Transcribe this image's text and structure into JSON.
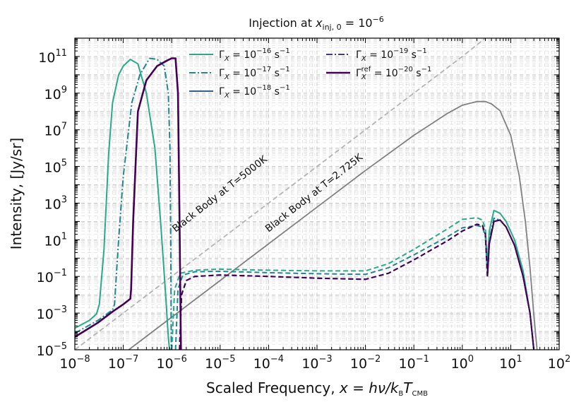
{
  "chart_data": {
    "type": "line",
    "title_prefix": "Injection at ",
    "title_math": "x",
    "title_sub": "inj, 0",
    "title_eq": " = 10",
    "title_exp": "−6",
    "xlabel_prefix": "Scaled Frequency, ",
    "xlabel_math": "x = hν/k",
    "xlabel_sub_b": "B",
    "xlabel_T": "T",
    "xlabel_sub_cmb": "CMB",
    "ylabel": "Intensity, [Jy/sr]",
    "x_scale": "log",
    "y_scale": "log",
    "xlim": [
      1e-08,
      100
    ],
    "ylim": [
      1e-05,
      1000000000000.0
    ],
    "x_ticks": [
      {
        "base": "10",
        "exp": "−8"
      },
      {
        "base": "10",
        "exp": "−7"
      },
      {
        "base": "10",
        "exp": "−6"
      },
      {
        "base": "10",
        "exp": "−5"
      },
      {
        "base": "10",
        "exp": "−4"
      },
      {
        "base": "10",
        "exp": "−3"
      },
      {
        "base": "10",
        "exp": "−2"
      },
      {
        "base": "10",
        "exp": "−1"
      },
      {
        "base": "10",
        "exp": "0"
      },
      {
        "base": "10",
        "exp": "1"
      },
      {
        "base": "10",
        "exp": "2"
      }
    ],
    "y_ticks": [
      {
        "base": "10",
        "exp": "−5"
      },
      {
        "base": "10",
        "exp": "−3"
      },
      {
        "base": "10",
        "exp": "−1"
      },
      {
        "base": "10",
        "exp": "1"
      },
      {
        "base": "10",
        "exp": "3"
      },
      {
        "base": "10",
        "exp": "5"
      },
      {
        "base": "10",
        "exp": "7"
      },
      {
        "base": "10",
        "exp": "9"
      },
      {
        "base": "10",
        "exp": "11"
      }
    ],
    "grid": true,
    "legend_position": "top",
    "series": [
      {
        "name": "Γ_X = 10^−16 s^−1",
        "legend_math": "Γ",
        "legend_sub": "X",
        "legend_sup": "",
        "legend_eq": " = 10",
        "legend_exp": "−16",
        "legend_unit": " s",
        "legend_unit_exp": "−1",
        "color": "#2aa98a",
        "style": "solid",
        "x": [
          1e-08,
          2e-08,
          2.8e-08,
          3.2e-08,
          4e-08,
          5e-08,
          6e-08,
          8e-08,
          1e-07,
          1.4e-07,
          2e-07,
          3e-07,
          4.5e-07,
          6e-07,
          7.5e-07,
          8.5e-07,
          9e-07
        ],
        "y": [
          0.00015,
          0.0004,
          0.0009,
          0.003,
          3,
          500000.0,
          300000000.0,
          10000000000.0,
          30000000000.0,
          70000000000.0,
          40000000000.0,
          1000000000.0,
          1000000.0,
          50,
          0.01,
          5e-05,
          1e-05
        ]
      },
      {
        "name": "Γ_X = 10^−17 s^−1",
        "legend_math": "Γ",
        "legend_sub": "X",
        "legend_sup": "",
        "legend_eq": " = 10",
        "legend_exp": "−17",
        "legend_unit": " s",
        "legend_unit_exp": "−1",
        "color": "#22868a",
        "style": "dashdot",
        "x": [
          1e-08,
          3e-08,
          6e-08,
          6.6e-08,
          8e-08,
          1e-07,
          1.5e-07,
          2.2e-07,
          3.5e-07,
          5e-07,
          7e-07,
          8.5e-07,
          9.2e-07,
          9.6e-07,
          9.8e-07
        ],
        "y": [
          8e-05,
          0.0004,
          0.0015,
          0.003,
          10,
          30000.0,
          300000000.0,
          10000000000.0,
          80000000000.0,
          70000000000.0,
          30000000000.0,
          1000000000.0,
          1000000.0,
          1,
          1e-05
        ]
      },
      {
        "name": "Γ_X = 10^−18 s^−1",
        "legend_math": "Γ",
        "legend_sub": "X",
        "legend_sup": "",
        "legend_eq": " = 10",
        "legend_exp": "−18",
        "legend_unit": " s",
        "legend_unit_exp": "−1",
        "color": "#355f8d",
        "style": "solid",
        "x": [
          1e-08,
          3e-08,
          6e-08,
          1e-07,
          1.4e-07,
          1.45e-07,
          1.6e-07,
          2e-07,
          3e-07,
          5e-07,
          8e-07,
          1e-06,
          1.2e-06,
          1.35e-06,
          1.45e-06,
          1.55e-06
        ],
        "y": [
          5e-05,
          0.0003,
          0.0012,
          0.003,
          0.006,
          0.02,
          100,
          100000000.0,
          5000000000.0,
          30000000000.0,
          60000000000.0,
          80000000000.0,
          80000000000.0,
          1000000000.0,
          100,
          1e-05
        ]
      },
      {
        "name": "Γ_X = 10^−19 s^−1",
        "legend_math": "Γ",
        "legend_sub": "X",
        "legend_sup": "",
        "legend_eq": " = 10",
        "legend_exp": "−19",
        "legend_unit": " s",
        "legend_unit_exp": "−1",
        "color": "#443a83",
        "style": "dashdot",
        "x": [
          1e-08,
          3e-08,
          6e-08,
          1e-07,
          1.4e-07,
          1.45e-07,
          1.6e-07,
          2e-07,
          3e-07,
          5e-07,
          8e-07,
          1e-06,
          1.2e-06,
          1.35e-06,
          1.45e-06,
          1.55e-06
        ],
        "y": [
          5e-05,
          0.0003,
          0.0012,
          0.003,
          0.006,
          0.02,
          100,
          100000000.0,
          5000000000.0,
          30000000000.0,
          60000000000.0,
          80000000000.0,
          80000000000.0,
          1000000000.0,
          100,
          1e-05
        ]
      },
      {
        "name": "Γ_X^ref = 10^−20 s^−1",
        "legend_math": "Γ",
        "legend_sub": "X",
        "legend_sup": "ref",
        "legend_eq": " = 10",
        "legend_exp": "−20",
        "legend_unit": " s",
        "legend_unit_exp": "−1",
        "color": "#440154",
        "style": "solid",
        "x": [
          1e-08,
          3e-08,
          6e-08,
          1e-07,
          1.4e-07,
          1.45e-07,
          1.6e-07,
          2e-07,
          3e-07,
          5e-07,
          8e-07,
          1e-06,
          1.2e-06,
          1.35e-06,
          1.45e-06,
          1.55e-06
        ],
        "y": [
          5e-05,
          0.0003,
          0.0012,
          0.003,
          0.006,
          0.02,
          100,
          100000000.0,
          5000000000.0,
          30000000000.0,
          60000000000.0,
          80000000000.0,
          80000000000.0,
          1000000000.0,
          100,
          1e-05
        ]
      }
    ],
    "tail_series": [
      {
        "name": "Γ_X = 10^−16 s^−1 (x > 10^−6)",
        "color": "#2aa98a",
        "x": [
          1e-06,
          1.15e-06,
          1.5e-06,
          3e-06,
          1e-05,
          0.0001,
          0.001,
          0.01,
          0.03,
          0.1,
          0.5,
          1,
          2,
          2.6,
          3.0,
          3.3,
          3.6,
          4.5,
          6,
          8,
          12,
          18,
          25,
          30
        ],
        "y": [
          1e-05,
          0.02,
          0.15,
          0.22,
          0.25,
          0.22,
          0.2,
          0.2,
          0.5,
          3,
          40,
          130,
          160,
          120,
          40,
          0.5,
          30,
          400,
          280,
          100,
          10,
          0.2,
          0.001,
          1e-05
        ],
        "style": "dashed",
        "tail_style_after": "solid",
        "split_x": 3.5
      },
      {
        "name": "Γ_X = 10^−17 s^−1 (x > 10^−6)",
        "color": "#22868a",
        "x": [
          1.2e-06,
          1.35e-06,
          1.7e-06,
          3e-06,
          1e-05,
          0.0001,
          0.001,
          0.01,
          0.03,
          0.1,
          0.5,
          1,
          2,
          2.6,
          3.0,
          3.3,
          3.6,
          4.5,
          6,
          8,
          12,
          18,
          25,
          30
        ],
        "y": [
          1e-05,
          0.02,
          0.12,
          0.18,
          0.19,
          0.16,
          0.14,
          0.13,
          0.3,
          1.5,
          15,
          45,
          60,
          50,
          15,
          0.2,
          10,
          150,
          120,
          50,
          5,
          0.1,
          0.001,
          1e-05
        ],
        "style": "dashed",
        "tail_style_after": "dashdot",
        "split_x": 3.5
      },
      {
        "name": "Γ_X = 10^−18 s^−1 (x > 10^−6)",
        "color": "#355f8d",
        "x": [
          1.45e-06,
          1.6e-06,
          2e-06,
          3e-06,
          1e-05,
          0.0001,
          0.001,
          0.01,
          0.03,
          0.1,
          0.5,
          1,
          2,
          2.6,
          3.0,
          3.3,
          3.6,
          4.5,
          6,
          8,
          12,
          18,
          25,
          30
        ],
        "y": [
          1e-05,
          0.01,
          0.06,
          0.1,
          0.12,
          0.1,
          0.08,
          0.07,
          0.15,
          0.8,
          9,
          30,
          70,
          60,
          20,
          0.1,
          6,
          100,
          120,
          50,
          5,
          0.1,
          0.001,
          1e-05
        ],
        "style": "dashed",
        "tail_style_after": "solid",
        "split_x": 3.5
      },
      {
        "name": "Γ_X = 10^−19 s^−1 (x > 10^−6)",
        "color": "#443a83",
        "x": [
          1.45e-06,
          1.6e-06,
          2e-06,
          3e-06,
          1e-05,
          0.0001,
          0.001,
          0.01,
          0.03,
          0.1,
          0.5,
          1,
          2,
          2.6,
          3.0,
          3.3,
          3.6,
          4.5,
          6,
          8,
          12,
          18,
          25,
          30
        ],
        "y": [
          1e-05,
          0.01,
          0.06,
          0.1,
          0.12,
          0.1,
          0.08,
          0.07,
          0.15,
          0.8,
          9,
          30,
          70,
          60,
          20,
          0.1,
          6,
          100,
          120,
          50,
          5,
          0.1,
          0.001,
          1e-05
        ],
        "style": "dashed",
        "tail_style_after": "dashdot",
        "split_x": 3.5
      },
      {
        "name": "Γ_X^ref = 10^−20 s^−1 (x > 10^−6)",
        "color": "#440154",
        "x": [
          1.45e-06,
          1.6e-06,
          2e-06,
          3e-06,
          1e-05,
          0.0001,
          0.001,
          0.01,
          0.03,
          0.1,
          0.5,
          1,
          2,
          2.6,
          3.0,
          3.3,
          3.6,
          4.5,
          6,
          8,
          12,
          18,
          25,
          30
        ],
        "y": [
          1e-05,
          0.01,
          0.06,
          0.1,
          0.12,
          0.1,
          0.08,
          0.07,
          0.15,
          0.8,
          9,
          30,
          70,
          60,
          20,
          0.1,
          6,
          100,
          120,
          50,
          5,
          0.1,
          0.001,
          1e-05
        ],
        "style": "dashed",
        "tail_style_after": "solid",
        "split_x": 3.5
      }
    ],
    "blackbody_curves": [
      {
        "name": "Black Body at T=2.725K",
        "color": "#808080",
        "style": "solid",
        "x": [
          1.3e-07,
          1e-06,
          1e-05,
          0.0001,
          0.001,
          0.01,
          0.1,
          0.5,
          1,
          2,
          3,
          4,
          6,
          10,
          15,
          20,
          25,
          30,
          35
        ],
        "y": [
          1e-05,
          0.0006,
          0.06,
          6,
          600,
          60000.0,
          5000000.0,
          80000000.0,
          220000000.0,
          350000000.0,
          350000000.0,
          260000000.0,
          110000000.0,
          5000000.0,
          30000.0,
          100,
          0.3,
          0.0008,
          1e-05
        ]
      },
      {
        "name": "Black Body at T=5000K",
        "color": "#b3b3b3",
        "style": "dashed",
        "x": [
          1e-08,
          1e-07,
          1e-06,
          1e-05,
          0.0001,
          0.001,
          0.01,
          0.1,
          1,
          3
        ],
        "y": [
          1e-05,
          0.001,
          0.1,
          10,
          1000,
          100000.0,
          10000000.0,
          1000000000.0,
          100000000000.0,
          1000000000000.0
        ]
      }
    ],
    "annotations": [
      {
        "text": "Black Body at T=5000K",
        "x": 1.2e-06,
        "y": 25,
        "rotation_deg": -38
      },
      {
        "text": "Black Body at T=2.725K",
        "x": 0.0001,
        "y": 25,
        "rotation_deg": -38
      }
    ]
  }
}
